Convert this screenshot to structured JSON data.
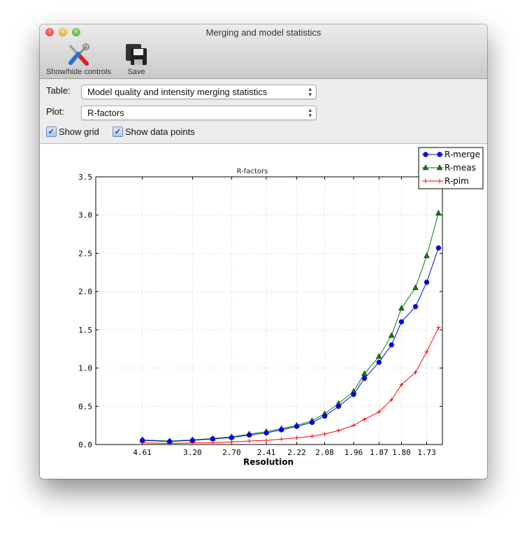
{
  "window": {
    "title": "Merging and model statistics"
  },
  "toolbar": {
    "show_hide_controls": "Show/hide controls",
    "save": "Save"
  },
  "controls": {
    "table_label": "Table:",
    "table_value": "Model quality and intensity merging statistics",
    "plot_label": "Plot:",
    "plot_value": "R-factors",
    "show_grid_label": "Show grid",
    "show_grid_checked": true,
    "show_points_label": "Show data points",
    "show_points_checked": true
  },
  "chart_data": {
    "type": "line",
    "title": "R-factors",
    "xlabel": "Resolution",
    "ylabel": "",
    "x_scale": "1/d^2",
    "x": [
      4.61,
      3.66,
      3.2,
      2.91,
      2.7,
      2.54,
      2.41,
      2.31,
      2.22,
      2.14,
      2.08,
      2.02,
      1.96,
      1.92,
      1.87,
      1.83,
      1.8,
      1.76,
      1.73,
      1.7
    ],
    "xticks": [
      "4.61",
      "3.20",
      "2.70",
      "2.41",
      "2.22",
      "2.08",
      "1.96",
      "1.87",
      "1.80",
      "1.73"
    ],
    "xlim_inv_d2": [
      0,
      0.35
    ],
    "ylim": [
      0,
      3.5
    ],
    "yticks": [
      "0.0",
      "0.5",
      "1.0",
      "1.5",
      "2.0",
      "2.5",
      "3.0",
      "3.5"
    ],
    "grid": true,
    "legend": "top-right",
    "series": [
      {
        "name": "R-merge",
        "color": "#0000ff",
        "marker": "circle",
        "values": [
          0.055,
          0.04,
          0.055,
          0.073,
          0.091,
          0.125,
          0.152,
          0.192,
          0.238,
          0.289,
          0.372,
          0.499,
          0.655,
          0.865,
          1.075,
          1.303,
          1.605,
          1.803,
          2.122,
          2.57
        ]
      },
      {
        "name": "R-meas",
        "color": "#008000",
        "marker": "triangle",
        "values": [
          0.061,
          0.046,
          0.061,
          0.079,
          0.1,
          0.137,
          0.168,
          0.207,
          0.25,
          0.311,
          0.402,
          0.536,
          0.694,
          0.926,
          1.151,
          1.426,
          1.782,
          2.05,
          2.467,
          3.025
        ]
      },
      {
        "name": "R-pim",
        "color": "#ff0000",
        "marker": "plus",
        "values": [
          0.021,
          0.015,
          0.021,
          0.024,
          0.034,
          0.046,
          0.055,
          0.07,
          0.088,
          0.107,
          0.137,
          0.183,
          0.25,
          0.329,
          0.426,
          0.585,
          0.783,
          0.944,
          1.212,
          1.529
        ]
      }
    ]
  }
}
